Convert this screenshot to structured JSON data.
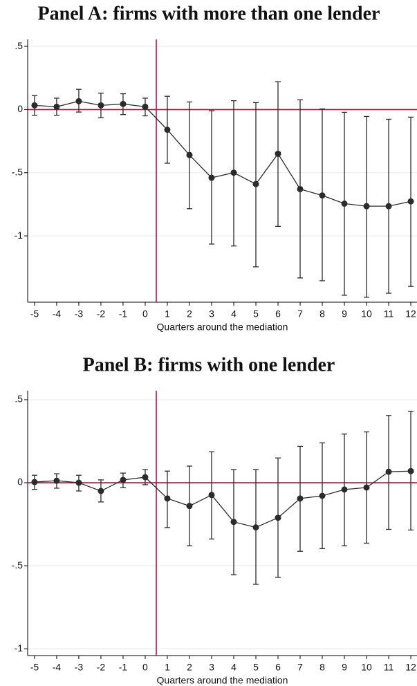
{
  "chart_data": [
    {
      "type": "line",
      "title": "Panel A: firms with more than one lender",
      "xlabel": "Quarters around the mediation",
      "x": [
        -5,
        -4,
        -3,
        -2,
        -1,
        0,
        1,
        2,
        3,
        4,
        5,
        6,
        7,
        8,
        9,
        10,
        11,
        12
      ],
      "values": [
        0.033,
        0.022,
        0.066,
        0.033,
        0.044,
        0.022,
        -0.16,
        -0.36,
        -0.54,
        -0.5,
        -0.59,
        -0.35,
        -0.63,
        -0.68,
        -0.745,
        -0.765,
        -0.765,
        -0.727
      ],
      "lower": [
        -0.045,
        -0.045,
        -0.02,
        -0.065,
        -0.04,
        -0.05,
        -0.425,
        -0.785,
        -1.065,
        -1.08,
        -1.245,
        -0.925,
        -1.333,
        -1.355,
        -1.47,
        -1.486,
        -1.454,
        -1.4
      ],
      "upper": [
        0.11,
        0.09,
        0.16,
        0.13,
        0.125,
        0.09,
        0.105,
        0.06,
        -0.01,
        0.07,
        0.055,
        0.22,
        0.077,
        0.005,
        -0.022,
        -0.055,
        -0.077,
        -0.06
      ],
      "color": "#2b2b2b",
      "ref_color": "#b0103a",
      "hline": 0,
      "vline": 0.5,
      "xlim": [
        -5.31,
        12.28
      ],
      "xticks": [
        -5,
        -4,
        -3,
        -2,
        -1,
        0,
        1,
        2,
        3,
        4,
        5,
        6,
        7,
        8,
        9,
        10,
        11,
        12
      ],
      "ylim": [
        -1.525,
        0.555
      ],
      "yticks": [
        {
          "value": 0.5,
          "label": ".5"
        },
        0,
        {
          "value": -0.5,
          "label": "-.5"
        },
        -1
      ],
      "grid": true
    },
    {
      "type": "line",
      "title": "Panel B: firms with one lender",
      "xlabel": "Quarters around the mediation",
      "x": [
        -5,
        -4,
        -3,
        -2,
        -1,
        0,
        1,
        2,
        3,
        4,
        5,
        6,
        7,
        8,
        9,
        10,
        11,
        12
      ],
      "values": [
        0.004,
        0.012,
        0,
        -0.05,
        0.017,
        0.033,
        -0.095,
        -0.14,
        -0.074,
        -0.236,
        -0.269,
        -0.211,
        -0.095,
        -0.079,
        -0.041,
        -0.029,
        0.066,
        0.07
      ],
      "lower": [
        -0.04,
        -0.033,
        -0.05,
        -0.116,
        -0.029,
        -0.012,
        -0.27,
        -0.38,
        -0.339,
        -0.554,
        -0.612,
        -0.57,
        -0.413,
        -0.397,
        -0.38,
        -0.364,
        -0.281,
        -0.285
      ],
      "upper": [
        0.045,
        0.054,
        0.045,
        0.017,
        0.058,
        0.079,
        0.07,
        0.1,
        0.186,
        0.079,
        0.079,
        0.149,
        0.219,
        0.24,
        0.293,
        0.306,
        0.405,
        0.43
      ],
      "color": "#2b2b2b",
      "ref_color": "#b0103a",
      "hline": 0,
      "vline": 0.5,
      "xlim": [
        -5.31,
        12.28
      ],
      "xticks": [
        -5,
        -4,
        -3,
        -2,
        -1,
        0,
        1,
        2,
        3,
        4,
        5,
        6,
        7,
        8,
        9,
        10,
        11,
        12
      ],
      "ylim": [
        -1.041,
        0.554
      ],
      "yticks": [
        {
          "value": 0.5,
          "label": ".5"
        },
        0,
        {
          "value": -0.5,
          "label": "-.5"
        },
        -1
      ],
      "grid": true
    }
  ]
}
